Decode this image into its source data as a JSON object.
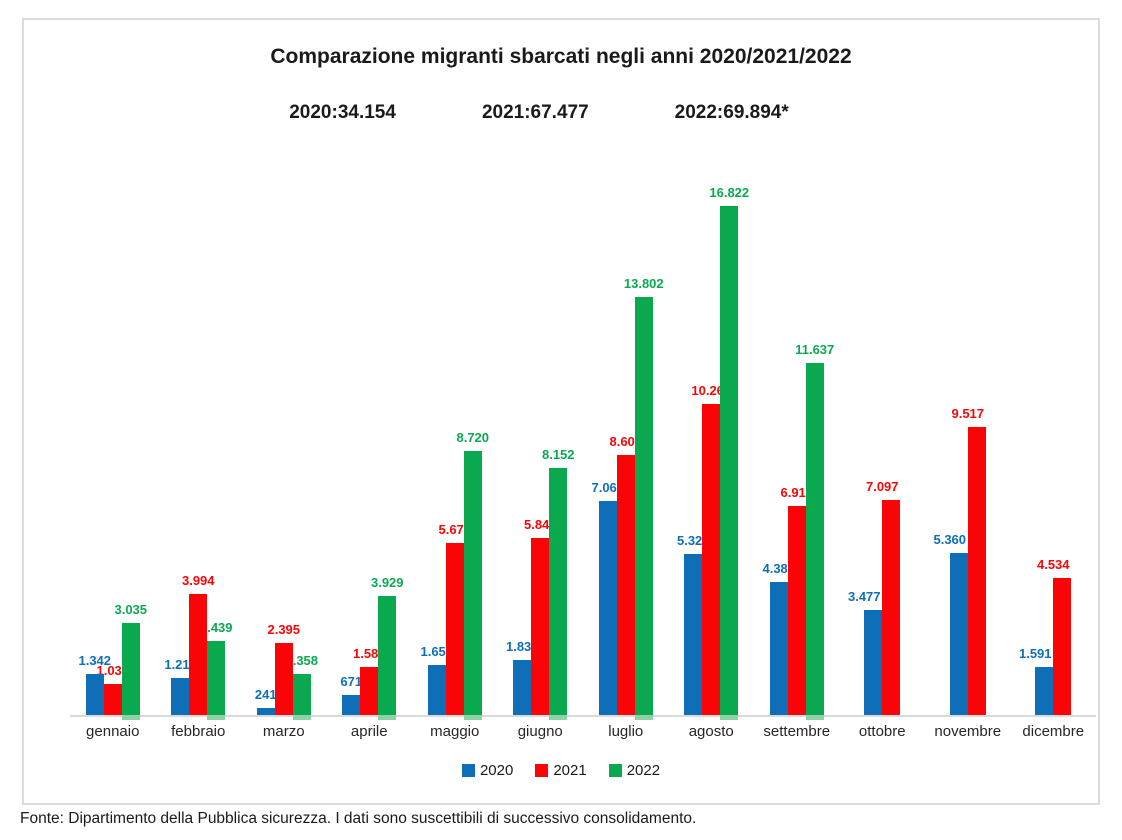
{
  "title": "Comparazione migranti sbarcati negli anni 2020/2021/2022",
  "totals": [
    {
      "label": "2020:34.154"
    },
    {
      "label": "2021:67.477"
    },
    {
      "label": "2022:69.894*"
    }
  ],
  "chart_data": {
    "type": "bar",
    "title": "Comparazione migranti sbarcati negli anni 2020/2021/2022",
    "categories": [
      "gennaio",
      "febbraio",
      "marzo",
      "aprile",
      "maggio",
      "giugno",
      "luglio",
      "agosto",
      "settembre",
      "ottobre",
      "novembre",
      "dicembre"
    ],
    "series": [
      {
        "name": "2020",
        "color": "#0e6fb8",
        "values": [
          1342,
          1211,
          241,
          671,
          1654,
          1831,
          7062,
          5328,
          4386,
          3477,
          5360,
          1591
        ]
      },
      {
        "name": "2021",
        "color": "#fa0507",
        "values": [
          1039,
          3994,
          2395,
          1585,
          5679,
          5840,
          8609,
          10269,
          6919,
          7097,
          9517,
          4534
        ]
      },
      {
        "name": "2022",
        "color": "#0ba94f",
        "values": [
          3035,
          2439,
          1358,
          3929,
          8720,
          8152,
          13802,
          16822,
          11637,
          null,
          null,
          null
        ]
      }
    ],
    "ylim": [
      0,
      16822
    ],
    "grid": false,
    "value_labels": true,
    "legend_position": "bottom",
    "axis_color": "#d9d9d9",
    "green_base_strip_color": "#8fd0a5"
  },
  "footer": "Fonte: Dipartimento della Pubblica sicurezza. I dati sono suscettibili di successivo consolidamento."
}
